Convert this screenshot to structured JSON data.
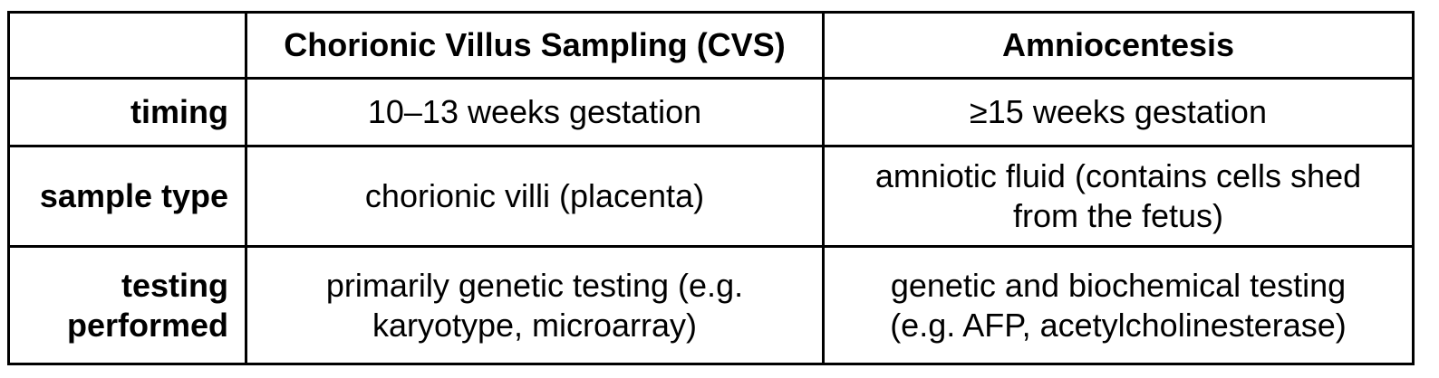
{
  "table": {
    "header": {
      "corner": "",
      "col1": "Chorionic Villus Sampling (CVS)",
      "col2": "Amniocentesis"
    },
    "rows": [
      {
        "label": [
          "timing"
        ],
        "cvs": [
          "10–13 weeks gestation"
        ],
        "amnio": [
          "≥15 weeks gestation"
        ]
      },
      {
        "label": [
          "sample type"
        ],
        "cvs": [
          "chorionic villi (placenta)"
        ],
        "amnio": [
          "amniotic fluid (contains cells shed",
          "from the fetus)"
        ]
      },
      {
        "label": [
          "testing",
          "performed"
        ],
        "cvs": [
          "primarily genetic testing (e.g.",
          "karyotype, microarray)"
        ],
        "amnio": [
          "genetic and biochemical testing",
          "(e.g. AFP, acetylcholinesterase)"
        ]
      }
    ]
  }
}
